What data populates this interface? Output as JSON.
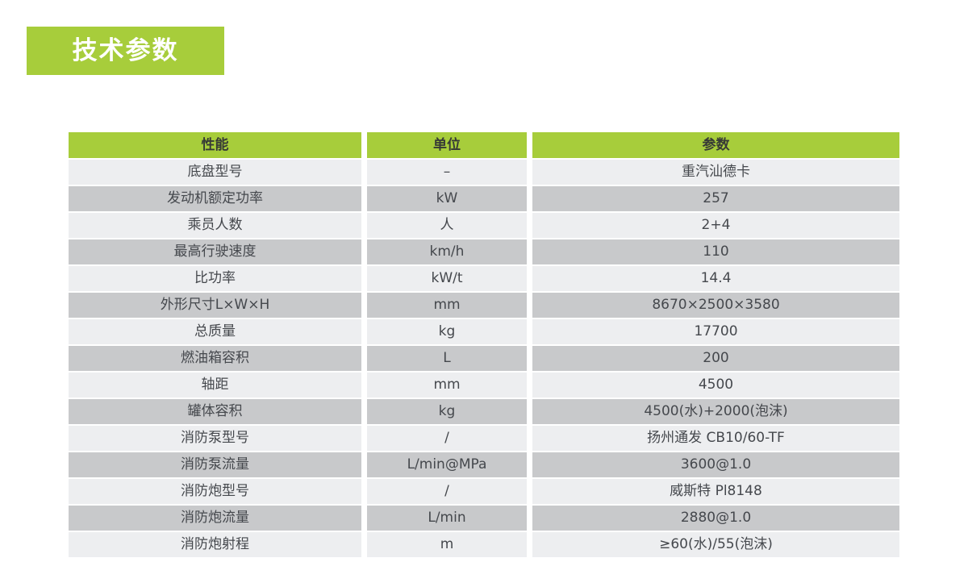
{
  "title": {
    "label": "技术参数",
    "background": "#a7cd3b",
    "text_color": "#ffffff"
  },
  "table": {
    "headers": [
      "性能",
      "单位",
      "参数"
    ],
    "rows": [
      {
        "name": "底盘型号",
        "unit": "–",
        "value": "重汽汕德卡"
      },
      {
        "name": "发动机额定功率",
        "unit": "kW",
        "value": "257"
      },
      {
        "name": "乘员人数",
        "unit": "人",
        "value": "2+4"
      },
      {
        "name": "最高行驶速度",
        "unit": "km/h",
        "value": "110"
      },
      {
        "name": "比功率",
        "unit": "kW/t",
        "value": "14.4"
      },
      {
        "name": "外形尺寸L×W×H",
        "unit": "mm",
        "value": "8670×2500×3580"
      },
      {
        "name": "总质量",
        "unit": "kg",
        "value": "17700"
      },
      {
        "name": "燃油箱容积",
        "unit": "L",
        "value": "200"
      },
      {
        "name": "轴距",
        "unit": "mm",
        "value": "4500"
      },
      {
        "name": "罐体容积",
        "unit": "kg",
        "value": "4500(水)+2000(泡沫)"
      },
      {
        "name": "消防泵型号",
        "unit": "/",
        "value": "扬州通发 CB10/60-TF"
      },
      {
        "name": "消防泵流量",
        "unit": "L/min@MPa",
        "value": "3600@1.0"
      },
      {
        "name": "消防炮型号",
        "unit": "/",
        "value": "威斯特 Pl8148"
      },
      {
        "name": "消防炮流量",
        "unit": "L/min",
        "value": "2880@1.0"
      },
      {
        "name": "消防炮射程",
        "unit": "m",
        "value": "≥60(水)/55(泡沫)"
      }
    ],
    "colors": {
      "header_bg": "#a7cd3b",
      "row_light": "#edeef0",
      "row_dark": "#c8c9cb",
      "text": "#45484d"
    }
  }
}
